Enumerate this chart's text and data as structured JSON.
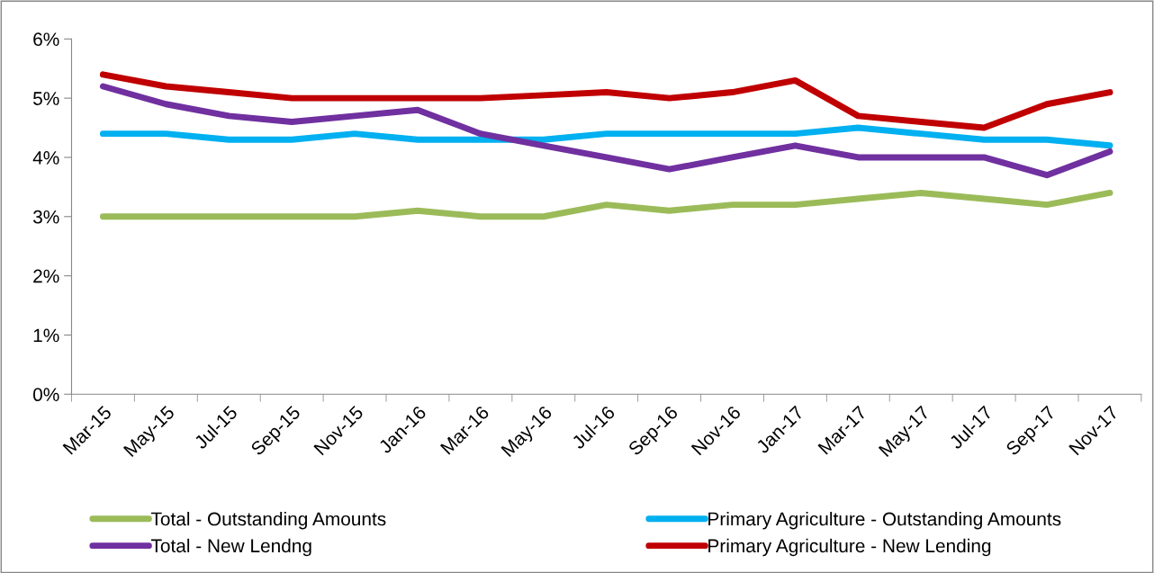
{
  "chart_data": {
    "type": "line",
    "categories": [
      "Mar-15",
      "May-15",
      "Jul-15",
      "Sep-15",
      "Nov-15",
      "Jan-16",
      "Mar-16",
      "May-16",
      "Jul-16",
      "Sep-16",
      "Nov-16",
      "Jan-17",
      "Mar-17",
      "May-17",
      "Jul-17",
      "Sep-17",
      "Nov-17"
    ],
    "series": [
      {
        "name": "Total - Outstanding Amounts",
        "color": "#9bbb59",
        "values": [
          3.0,
          3.0,
          3.0,
          3.0,
          3.0,
          3.1,
          3.0,
          3.0,
          3.2,
          3.1,
          3.2,
          3.2,
          3.3,
          3.4,
          3.3,
          3.2,
          3.4
        ]
      },
      {
        "name": "Primary Agriculture - Outstanding Amounts",
        "color": "#00b0f0",
        "values": [
          4.4,
          4.4,
          4.3,
          4.3,
          4.4,
          4.3,
          4.3,
          4.3,
          4.4,
          4.4,
          4.4,
          4.4,
          4.5,
          4.4,
          4.3,
          4.3,
          4.2
        ]
      },
      {
        "name": "Total - New Lendng",
        "color": "#7030a0",
        "values": [
          5.2,
          4.9,
          4.7,
          4.6,
          4.7,
          4.8,
          4.4,
          4.2,
          4.0,
          3.8,
          4.0,
          4.2,
          4.0,
          4.0,
          4.0,
          3.7,
          4.1
        ]
      },
      {
        "name": "Primary Agriculture - New Lending",
        "color": "#c00000",
        "values": [
          5.4,
          5.2,
          5.1,
          5.0,
          5.0,
          5.0,
          5.0,
          5.05,
          5.1,
          5.0,
          5.1,
          5.3,
          4.7,
          4.6,
          4.5,
          4.9,
          5.1
        ]
      }
    ],
    "ylim": [
      0,
      6
    ],
    "yticks": [
      {
        "value": 0,
        "label": "0%"
      },
      {
        "value": 1,
        "label": "1%"
      },
      {
        "value": 2,
        "label": "2%"
      },
      {
        "value": 3,
        "label": "3%"
      },
      {
        "value": 4,
        "label": "4%"
      },
      {
        "value": 5,
        "label": "5%"
      },
      {
        "value": 6,
        "label": "6%"
      }
    ],
    "grid": false,
    "legend": "bottom",
    "marker": "none",
    "line_style": "solid"
  }
}
